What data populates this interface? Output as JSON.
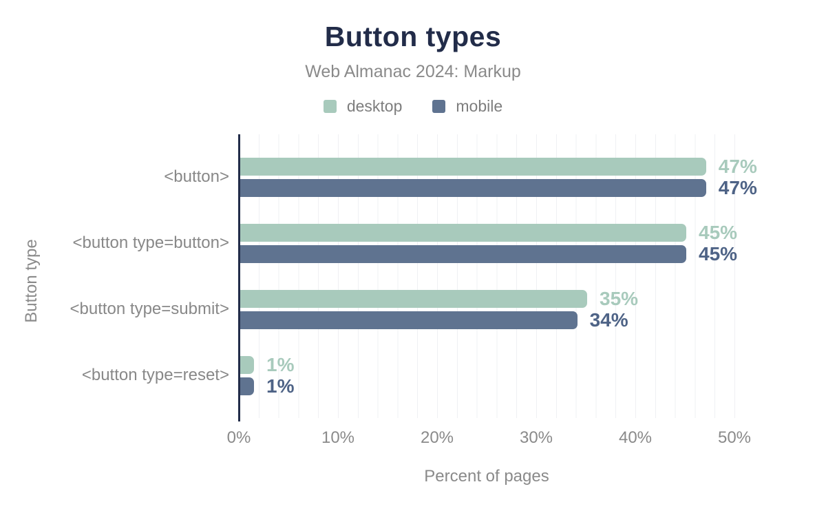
{
  "title": "Button types",
  "subtitle": "Web Almanac 2024: Markup",
  "legend": {
    "items": [
      {
        "name": "desktop",
        "label": "desktop",
        "color": "#a8cabc"
      },
      {
        "name": "mobile",
        "label": "mobile",
        "color": "#5f7390"
      }
    ]
  },
  "chart_data": {
    "type": "bar",
    "orientation": "horizontal",
    "title": "Button types",
    "subtitle": "Web Almanac 2024: Markup",
    "categories": [
      "<button>",
      "<button type=button>",
      "<button type=submit>",
      "<button type=reset>"
    ],
    "series": [
      {
        "name": "desktop",
        "color": "#a8cabc",
        "label_color": "#a8cabc",
        "values": [
          47,
          45,
          35,
          1
        ],
        "labels": [
          "47%",
          "45%",
          "35%",
          "1%"
        ]
      },
      {
        "name": "mobile",
        "color": "#5f7390",
        "label_color": "#4e6386",
        "values": [
          47,
          45,
          34,
          1
        ],
        "labels": [
          "47%",
          "45%",
          "34%",
          "1%"
        ]
      }
    ],
    "xlabel": "Percent of pages",
    "ylabel": "Button type",
    "x_ticks": [
      {
        "value": 0,
        "label": "0%"
      },
      {
        "value": 10,
        "label": "10%"
      },
      {
        "value": 20,
        "label": "20%"
      },
      {
        "value": 30,
        "label": "30%"
      },
      {
        "value": 40,
        "label": "40%"
      },
      {
        "value": 50,
        "label": "50%"
      }
    ],
    "xlim": [
      0,
      50
    ],
    "grid": {
      "minor_step_pct": 2,
      "color": "#eff0f3"
    },
    "value_suffix": "%",
    "legend_position": "top"
  },
  "colors": {
    "title": "#222c49",
    "axis": "#222c49",
    "muted_text": "#8a8a8a",
    "background": "#ffffff"
  }
}
